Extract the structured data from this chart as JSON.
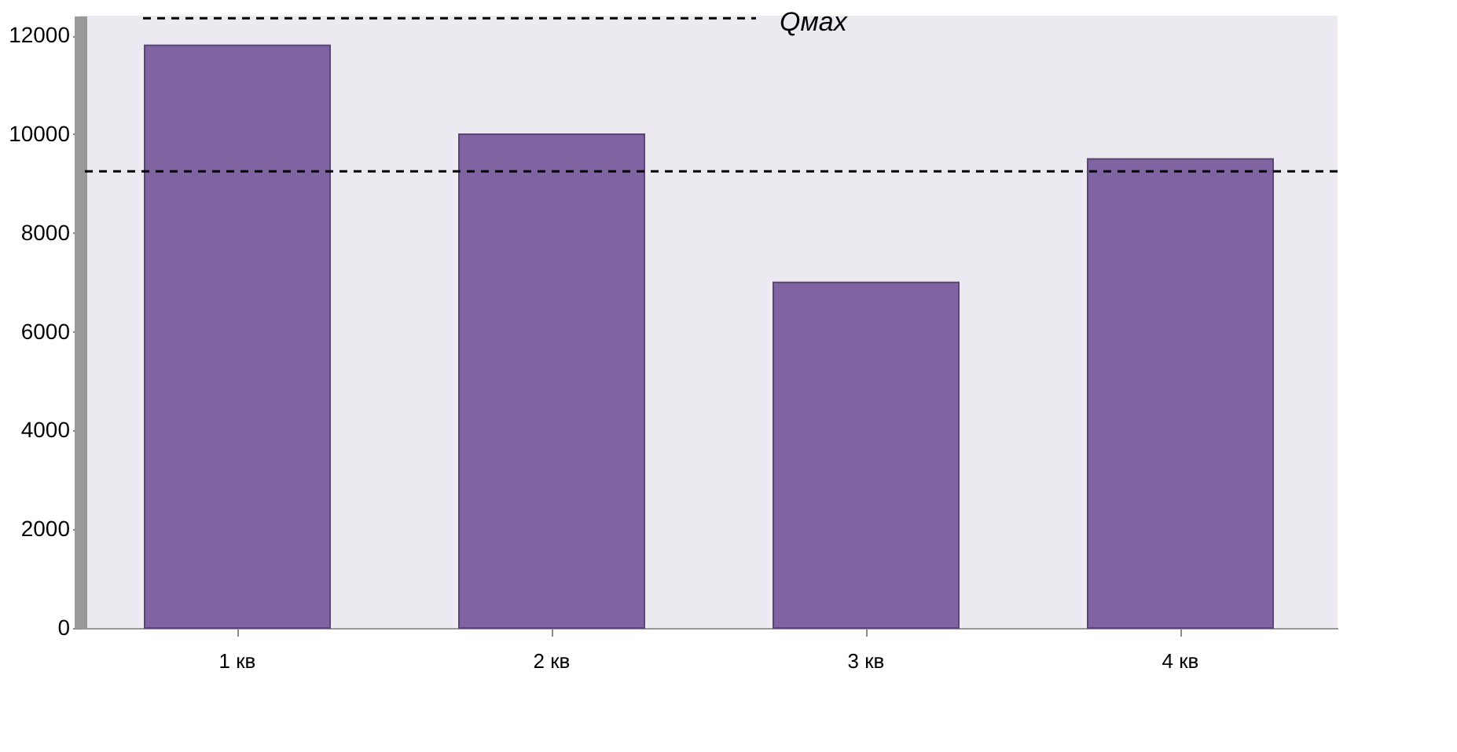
{
  "chart_data": {
    "type": "bar",
    "categories": [
      "1 кв",
      "2 кв",
      "3 кв",
      "4 кв"
    ],
    "values": [
      11800,
      10000,
      7000,
      9500
    ],
    "color": "#8064a2",
    "ylim": [
      0,
      12400
    ],
    "yticks": [
      0,
      2000,
      4000,
      6000,
      8000,
      10000,
      12000
    ],
    "grid": false,
    "ref_lines": [
      {
        "axis": "y",
        "value": 12350,
        "label": "Qмах",
        "line_style": "dashed",
        "color": "#000000"
      },
      {
        "axis": "y",
        "value": 9250,
        "line_style": "dashed",
        "color": "#000000"
      }
    ]
  }
}
